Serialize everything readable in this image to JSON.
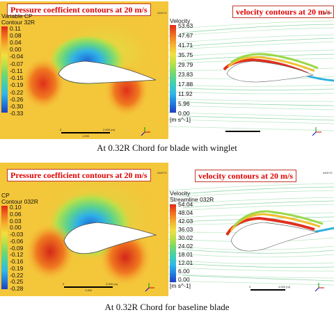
{
  "panels": {
    "cp_winglet": {
      "title": "Pressure coefficient contours at 20 m/s",
      "legend_title": [
        "Variable CP",
        "Contour 32R"
      ],
      "ticks": [
        "0.11",
        "0.08",
        "0.04",
        "0.00",
        "-0.04",
        "-0.07",
        "-0.11",
        "-0.15",
        "-0.19",
        "-0.22",
        "-0.26",
        "-0.30",
        "-0.33"
      ],
      "scale_labels": [
        "0",
        "2.000 (m)",
        "1.000"
      ],
      "brand": "ANSYS"
    },
    "vel_winglet": {
      "title": "velocity contours at 20 m/s",
      "legend_title": [
        "Velocity"
      ],
      "ticks": [
        "53.63",
        "47.67",
        "41.71",
        "35.75",
        "29.79",
        "23.83",
        "17.88",
        "11.92",
        "5.96",
        "0.00"
      ],
      "unit": "[m s^-1]",
      "brand": "ANSYS"
    },
    "cp_baseline": {
      "title": "Pressure coefficient contours at 20 m/s",
      "legend_title": [
        "CP",
        "Contour 032R"
      ],
      "ticks": [
        "0.10",
        "0.06",
        "0.03",
        "0.00",
        "-0.03",
        "-0.06",
        "-0.09",
        "-0.12",
        "-0.16",
        "-0.19",
        "-0.22",
        "-0.25",
        "-0.28"
      ],
      "scale_labels": [
        "0",
        "2.000 (m)",
        "1.000"
      ],
      "brand": "ANSYS"
    },
    "vel_baseline": {
      "title": "velocity contours at 20 m/s",
      "legend_title": [
        "Velocity",
        "Streamline 032R"
      ],
      "ticks": [
        "54.04",
        "48.04",
        "42.03",
        "36.03",
        "30.02",
        "24.02",
        "18.01",
        "12.01",
        "6.00",
        "0.00"
      ],
      "unit": "[m s^-1]",
      "scale_labels": [
        "0",
        "4.000 (m)"
      ],
      "brand": "ANSYS"
    }
  },
  "captions": {
    "top": "At 0.32R Chord for blade with winglet",
    "bottom": "At 0.32R Chord for baseline blade"
  }
}
